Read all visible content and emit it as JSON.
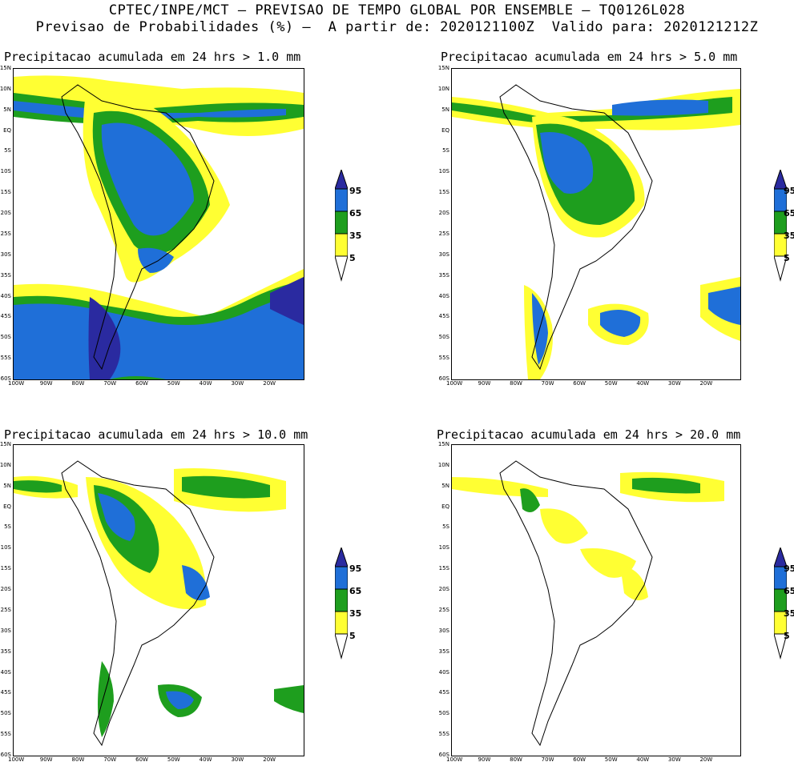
{
  "header": {
    "line1": "CPTEC/INPE/MCT – PREVISAO DE TEMPO GLOBAL POR ENSEMBLE – TQ0126L028",
    "line2": "Previsao de Probabilidades (%) –  A partir de: 2020121100Z  Valido para: 2020121212Z"
  },
  "panels": [
    {
      "title": "Precipitacao acumulada em 24 hrs > 1.0 mm"
    },
    {
      "title": "Precipitacao acumulada em 24 hrs > 5.0 mm"
    },
    {
      "title": "Precipitacao acumulada em 24 hrs > 10.0 mm"
    },
    {
      "title": "Precipitacao acumulada em 24 hrs > 20.0 mm"
    }
  ],
  "lat_labels": [
    "15N",
    "10N",
    "5N",
    "EQ",
    "5S",
    "10S",
    "15S",
    "20S",
    "25S",
    "30S",
    "35S",
    "40S",
    "45S",
    "50S",
    "55S",
    "60S"
  ],
  "lon_labels": [
    "100W",
    "90W",
    "80W",
    "70W",
    "60W",
    "50W",
    "40W",
    "30W",
    "20W"
  ],
  "colorbar": {
    "labels": [
      "95",
      "65",
      "35",
      "5"
    ],
    "colors": {
      "c95": "#2a2aa0",
      "c65": "#1f6fd8",
      "c35": "#1e9e1e",
      "c5": "#ffff33"
    }
  }
}
